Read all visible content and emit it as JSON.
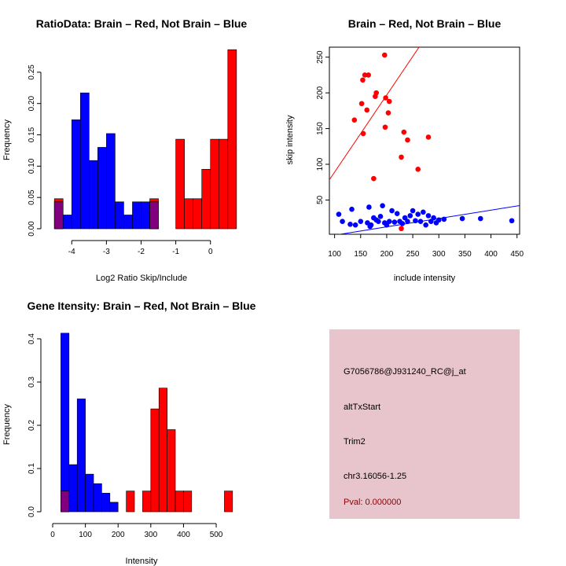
{
  "chart_data": [
    {
      "type": "bar",
      "title": "RatioData: Brain – Red, Not Brain – Blue",
      "xlabel": "Log2 Ratio Skip/Include",
      "ylabel": "Frequency",
      "xlim": [
        -4.55,
        0.55
      ],
      "ylim": [
        0,
        0.29
      ],
      "xticks": [
        "-4",
        "-3",
        "-2",
        "-1",
        "0"
      ],
      "xtick_values": [
        -4,
        -3,
        -2,
        -1,
        0
      ],
      "yticks": [
        "0.00",
        "0.05",
        "0.10",
        "0.15",
        "0.20",
        "0.25"
      ],
      "ytick_values": [
        0,
        0.05,
        0.1,
        0.15,
        0.2,
        0.25
      ],
      "bin_start": -4.5,
      "bin_width": 0.25,
      "series": [
        {
          "name": "Not Brain",
          "color": "#0000ff",
          "values": [
            0.043,
            0.022,
            0.174,
            0.217,
            0.109,
            0.13,
            0.152,
            0.043,
            0.022,
            0.043,
            0.043,
            0.043,
            0,
            0,
            0,
            0,
            0,
            0,
            0,
            0
          ]
        },
        {
          "name": "Brain",
          "color": "#ff0000",
          "values": [
            0.048,
            0,
            0,
            0,
            0,
            0,
            0,
            0,
            0,
            0,
            0,
            0.048,
            0,
            0,
            0.143,
            0.048,
            0.048,
            0.095,
            0.143,
            0.143,
            0.286
          ]
        }
      ],
      "overlap_color": "#800080"
    },
    {
      "type": "scatter",
      "title": "Brain – Red, Not Brain – Blue",
      "xlabel": "include intensity",
      "ylabel": "skip intensity",
      "xlim": [
        90,
        455
      ],
      "ylim": [
        2,
        264
      ],
      "xticks": [
        "100",
        "150",
        "200",
        "250",
        "300",
        "350",
        "400",
        "450"
      ],
      "xtick_values": [
        100,
        150,
        200,
        250,
        300,
        350,
        400,
        450
      ],
      "yticks": [
        "50",
        "100",
        "150",
        "200",
        "250"
      ],
      "ytick_values": [
        50,
        100,
        150,
        200,
        250
      ],
      "series": [
        {
          "name": "Brain",
          "color": "#ff0000",
          "points": [
            [
              196,
              253
            ],
            [
              154,
              218
            ],
            [
              158,
              225
            ],
            [
              165,
              225
            ],
            [
              180,
              200
            ],
            [
              178,
              195
            ],
            [
              152,
              185
            ],
            [
              198,
              193
            ],
            [
              205,
              188
            ],
            [
              138,
              162
            ],
            [
              162,
              176
            ],
            [
              197,
              152
            ],
            [
              203,
              172
            ],
            [
              155,
              143
            ],
            [
              233,
              145
            ],
            [
              240,
              134
            ],
            [
              280,
              138
            ],
            [
              228,
              110
            ],
            [
              260,
              93
            ],
            [
              175,
              80
            ],
            [
              228,
              10
            ]
          ],
          "fit": {
            "intercept": -19,
            "slope": 1.08
          }
        },
        {
          "name": "Not Brain",
          "color": "#0000ff",
          "points": [
            [
              108,
              30
            ],
            [
              115,
              20
            ],
            [
              130,
              16
            ],
            [
              133,
              37
            ],
            [
              140,
              15
            ],
            [
              150,
              20
            ],
            [
              163,
              18
            ],
            [
              166,
              40
            ],
            [
              168,
              13
            ],
            [
              170,
              15
            ],
            [
              175,
              25
            ],
            [
              180,
              22
            ],
            [
              184,
              20
            ],
            [
              188,
              27
            ],
            [
              192,
              42
            ],
            [
              196,
              18
            ],
            [
              200,
              15
            ],
            [
              205,
              20
            ],
            [
              210,
              35
            ],
            [
              215,
              19
            ],
            [
              220,
              31
            ],
            [
              225,
              20
            ],
            [
              230,
              17
            ],
            [
              235,
              25
            ],
            [
              240,
              20
            ],
            [
              245,
              28
            ],
            [
              250,
              35
            ],
            [
              255,
              21
            ],
            [
              260,
              30
            ],
            [
              265,
              20
            ],
            [
              270,
              33
            ],
            [
              275,
              15
            ],
            [
              280,
              28
            ],
            [
              285,
              20
            ],
            [
              290,
              25
            ],
            [
              295,
              18
            ],
            [
              300,
              22
            ],
            [
              310,
              23
            ],
            [
              345,
              24
            ],
            [
              380,
              24
            ],
            [
              440,
              21
            ]
          ],
          "fit": {
            "intercept": -11,
            "slope": 0.117
          }
        }
      ]
    },
    {
      "type": "bar",
      "title": "Gene Itensity: Brain – Red, Not Brain – Blue",
      "xlabel": "Intensity",
      "ylabel": "Frequency",
      "xlim": [
        0,
        560
      ],
      "ylim": [
        0,
        0.42
      ],
      "xticks": [
        "0",
        "100",
        "200",
        "300",
        "400",
        "500"
      ],
      "xtick_values": [
        0,
        100,
        200,
        300,
        400,
        500
      ],
      "yticks": [
        "0.0",
        "0.1",
        "0.2",
        "0.3",
        "0.4"
      ],
      "ytick_values": [
        0,
        0.1,
        0.2,
        0.3,
        0.4
      ],
      "bin_start": 0,
      "bin_width": 25,
      "series": [
        {
          "name": "Not Brain",
          "color": "#0000ff",
          "values": [
            0,
            0.413,
            0.109,
            0.261,
            0.087,
            0.065,
            0.043,
            0.022,
            0,
            0,
            0,
            0,
            0,
            0,
            0,
            0,
            0,
            0,
            0,
            0,
            0,
            0
          ]
        },
        {
          "name": "Brain",
          "color": "#ff0000",
          "values": [
            0,
            0.048,
            0,
            0,
            0,
            0,
            0,
            0,
            0,
            0.048,
            0,
            0.048,
            0.238,
            0.286,
            0.19,
            0.048,
            0.048,
            0,
            0,
            0,
            0,
            0.048
          ]
        }
      ],
      "overlap_color": "#800080"
    }
  ],
  "info_panel": {
    "probe_id": "G7056786@J931240_RC@j_at",
    "event_type": "altTxStart",
    "gene": "Trim2",
    "location": "chr3.16056-1.25",
    "pval": "Pval: 0.000000",
    "background": "#e8c4cc",
    "pval_color": "#8b0000"
  }
}
